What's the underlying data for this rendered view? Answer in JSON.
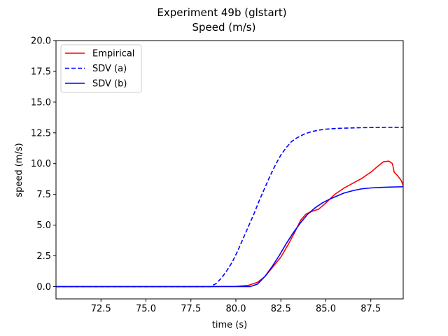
{
  "chart_data": {
    "type": "line",
    "title": "Experiment 49b (glstart)",
    "subtitle": "Speed (m/s)",
    "xlabel": "time (s)",
    "ylabel": "speed (m/s)",
    "xlim": [
      70.0,
      89.3
    ],
    "ylim": [
      -1.0,
      20.0
    ],
    "xticks": [
      72.5,
      75.0,
      77.5,
      80.0,
      82.5,
      85.0,
      87.5
    ],
    "xtick_labels": [
      "72.5",
      "75.0",
      "77.5",
      "80.0",
      "82.5",
      "85.0",
      "87.5"
    ],
    "yticks": [
      0.0,
      2.5,
      5.0,
      7.5,
      10.0,
      12.5,
      15.0,
      17.5,
      20.0
    ],
    "ytick_labels": [
      "0.0",
      "2.5",
      "5.0",
      "7.5",
      "10.0",
      "12.5",
      "15.0",
      "17.5",
      "20.0"
    ],
    "grid": false,
    "legend_position": "top-left",
    "series": [
      {
        "name": "Empirical",
        "color": "#ff0000",
        "dash": "solid",
        "x": [
          70.0,
          78.0,
          80.0,
          80.7,
          81.2,
          81.6,
          82.0,
          82.5,
          82.9,
          83.3,
          83.6,
          83.9,
          84.2,
          84.6,
          85.0,
          85.5,
          86.0,
          86.5,
          87.0,
          87.5,
          87.9,
          88.2,
          88.5,
          88.7,
          88.8,
          89.0,
          89.2,
          89.3
        ],
        "y": [
          0.0,
          0.0,
          0.02,
          0.1,
          0.35,
          0.8,
          1.5,
          2.4,
          3.4,
          4.5,
          5.4,
          5.9,
          6.1,
          6.3,
          6.8,
          7.5,
          8.0,
          8.4,
          8.8,
          9.3,
          9.8,
          10.15,
          10.2,
          10.0,
          9.3,
          9.0,
          8.6,
          8.2
        ]
      },
      {
        "name": "SDV (a)",
        "color": "#0000ff",
        "dash": "dashed",
        "x": [
          70.0,
          78.6,
          78.9,
          79.2,
          79.5,
          79.8,
          80.1,
          80.4,
          80.7,
          81.0,
          81.3,
          81.6,
          81.9,
          82.2,
          82.5,
          82.8,
          83.1,
          83.4,
          83.8,
          84.2,
          84.6,
          85.0,
          85.5,
          86.0,
          87.0,
          88.0,
          89.3
        ],
        "y": [
          0.0,
          0.0,
          0.25,
          0.7,
          1.3,
          2.0,
          2.9,
          3.9,
          4.9,
          5.9,
          7.0,
          8.0,
          9.0,
          9.9,
          10.7,
          11.3,
          11.8,
          12.1,
          12.4,
          12.6,
          12.72,
          12.8,
          12.85,
          12.88,
          12.92,
          12.94,
          12.95
        ]
      },
      {
        "name": "SDV (b)",
        "color": "#0000ff",
        "dash": "solid",
        "x": [
          70.0,
          80.8,
          81.2,
          81.6,
          82.0,
          82.4,
          82.8,
          83.2,
          83.6,
          84.0,
          84.4,
          84.8,
          85.2,
          85.6,
          86.0,
          86.5,
          87.0,
          87.5,
          88.0,
          88.5,
          89.3
        ],
        "y": [
          0.0,
          0.0,
          0.2,
          0.8,
          1.6,
          2.5,
          3.5,
          4.4,
          5.2,
          5.9,
          6.4,
          6.8,
          7.1,
          7.35,
          7.6,
          7.8,
          7.95,
          8.02,
          8.06,
          8.09,
          8.12
        ]
      }
    ]
  }
}
